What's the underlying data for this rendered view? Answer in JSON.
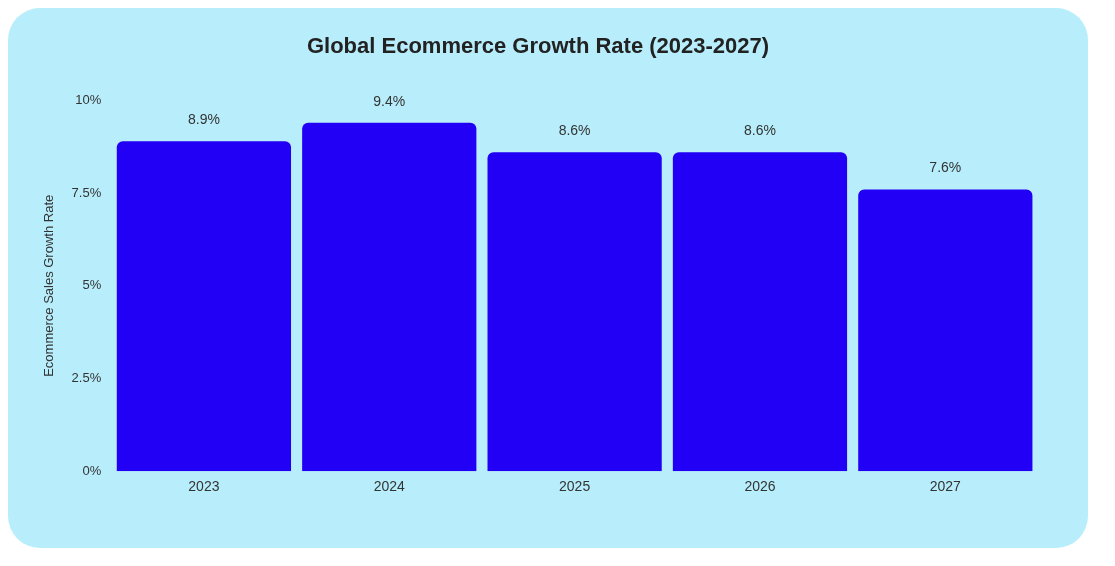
{
  "chart_data": {
    "type": "bar",
    "title": "Global Ecommerce Growth Rate (2023-2027)",
    "ylabel": "Ecommerce Sales Growth Rate",
    "categories": [
      "2023",
      "2024",
      "2025",
      "2026",
      "2027"
    ],
    "values": [
      8.9,
      9.4,
      8.6,
      8.6,
      7.6
    ],
    "color": "#2200f5",
    "value_labels": [
      "8.9%",
      "9.4%",
      "8.6%",
      "8.6%",
      "7.6%"
    ],
    "ylim": [
      0,
      10
    ],
    "yticks": [
      {
        "value": 0,
        "label": "0%"
      },
      {
        "value": 2.5,
        "label": "2.5%"
      },
      {
        "value": 5,
        "label": "5%"
      },
      {
        "value": 7.5,
        "label": "7.5%"
      },
      {
        "value": 10,
        "label": "10%"
      }
    ],
    "grid": false,
    "legend": false
  }
}
